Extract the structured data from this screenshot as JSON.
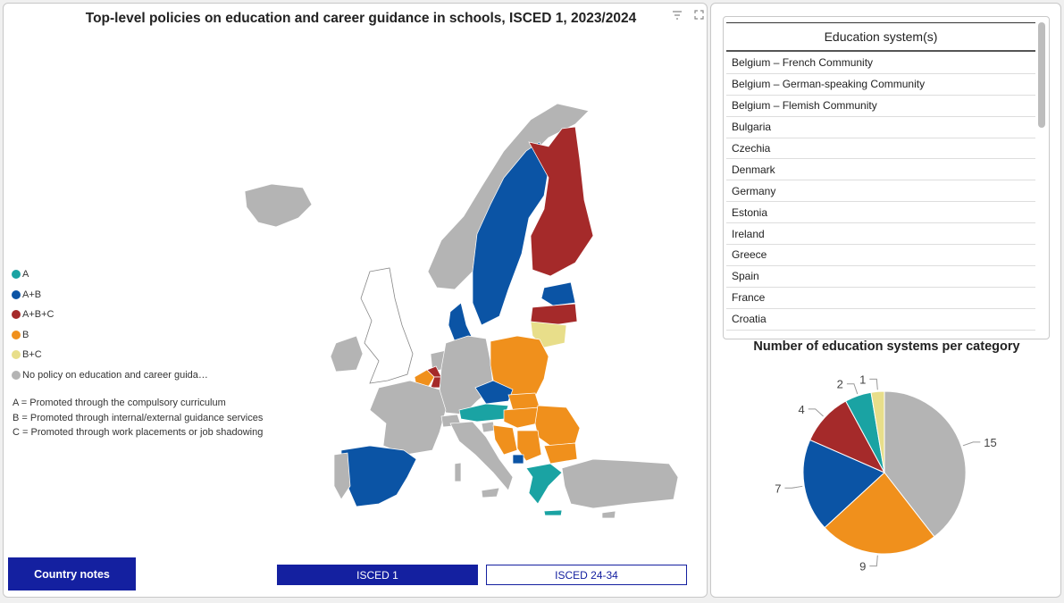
{
  "map": {
    "title": "Top-level policies on education and career guidance in schools, ISCED 1, 2023/2024",
    "toolbar_icons": [
      "filter-icon",
      "expand-icon"
    ],
    "legend": [
      {
        "label": "A",
        "color": "#1aa3a3"
      },
      {
        "label": "A+B",
        "color": "#0b54a5"
      },
      {
        "label": "A+B+C",
        "color": "#a52a2a"
      },
      {
        "label": "B",
        "color": "#f0901c"
      },
      {
        "label": "B+C",
        "color": "#e8de8a"
      },
      {
        "label": "No policy on education and career guida…",
        "color": "#b4b4b4"
      }
    ],
    "notes": [
      "A = Promoted through the compulsory curriculum",
      "B = Promoted through internal/external guidance services",
      "C = Promoted through work placements or job shadowing"
    ],
    "country_notes_button": "Country notes",
    "level_buttons": [
      "ISCED 1",
      "ISCED 24-34"
    ],
    "active_level": "ISCED 1"
  },
  "table": {
    "header": "Education system(s)",
    "rows": [
      "Belgium – French Community",
      "Belgium – German-speaking Community",
      "Belgium – Flemish Community",
      "Bulgaria",
      "Czechia",
      "Denmark",
      "Germany",
      "Estonia",
      "Ireland",
      "Greece",
      "Spain",
      "France",
      "Croatia"
    ]
  },
  "chart_data": {
    "type": "pie",
    "title": "Number of education systems per category",
    "slices": [
      {
        "category": "No policy on education and career guidance",
        "value": 15,
        "color": "#b4b4b4"
      },
      {
        "category": "B",
        "value": 9,
        "color": "#f0901c"
      },
      {
        "category": "A+B",
        "value": 7,
        "color": "#0b54a5"
      },
      {
        "category": "A+B+C",
        "value": 4,
        "color": "#a52a2a"
      },
      {
        "category": "A",
        "value": 2,
        "color": "#1aa3a3"
      },
      {
        "category": "B+C",
        "value": 1,
        "color": "#e8de8a"
      }
    ],
    "start_angle_deg": 0,
    "direction": "clockwise"
  }
}
